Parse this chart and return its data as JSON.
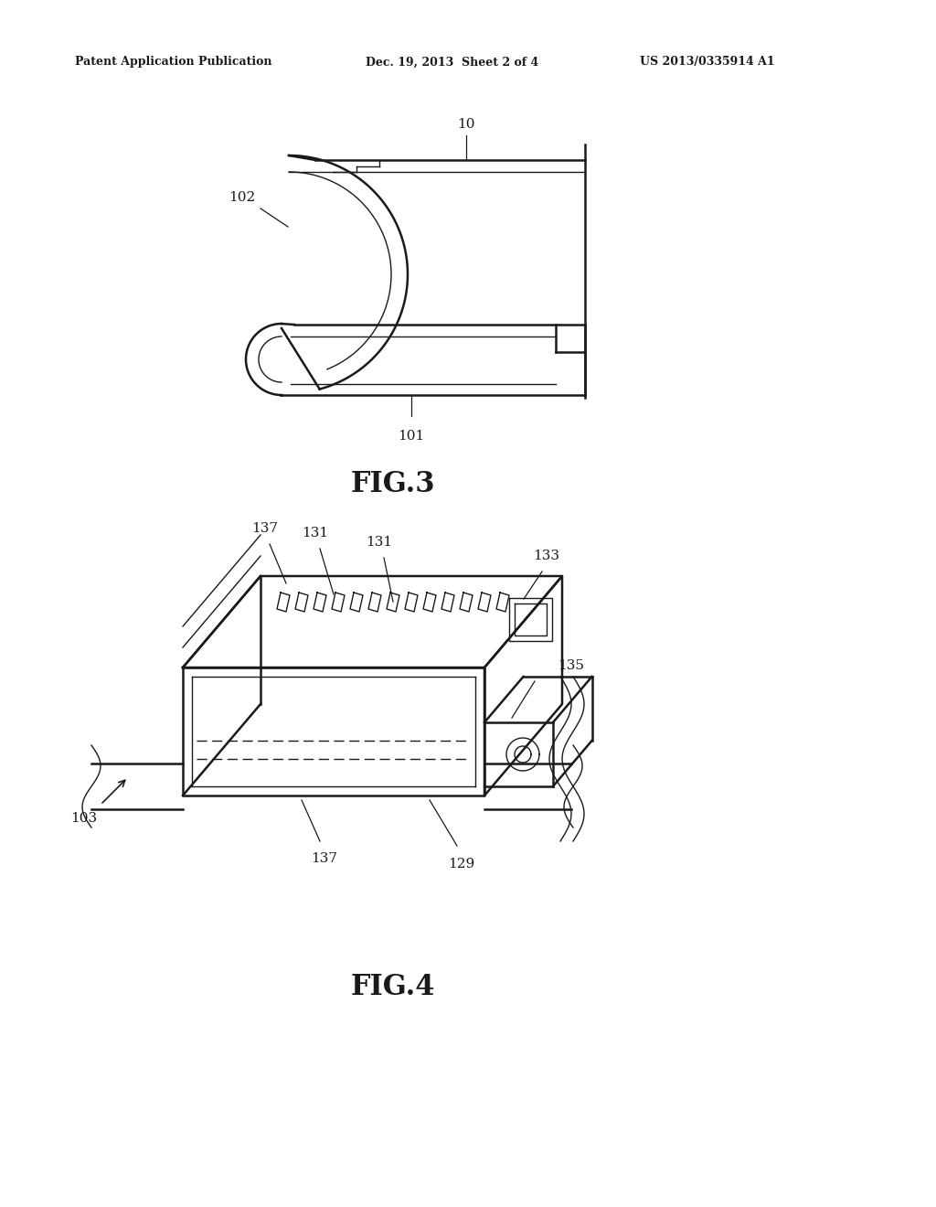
{
  "bg_color": "#ffffff",
  "line_color": "#1a1a1a",
  "header_left": "Patent Application Publication",
  "header_mid": "Dec. 19, 2013  Sheet 2 of 4",
  "header_right": "US 2013/0335914 A1",
  "fig3_label": "FIG.3",
  "fig4_label": "FIG.4"
}
